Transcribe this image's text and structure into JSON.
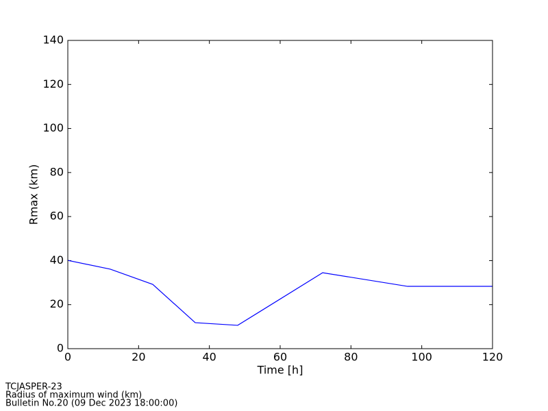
{
  "chart_data": {
    "type": "line",
    "xlabel": "Time [h]",
    "ylabel": "Rmax (km)",
    "x": [
      0,
      12,
      24,
      36,
      48,
      72,
      96,
      120
    ],
    "series": [
      {
        "name": "Rmax",
        "color": "#0000ff",
        "values": [
          40.1,
          36.1,
          29.2,
          11.8,
          10.6,
          34.5,
          28.3,
          28.3
        ]
      }
    ],
    "xlim": [
      0,
      120
    ],
    "xticks": [
      0,
      20,
      40,
      60,
      80,
      100,
      120
    ],
    "ylim": [
      0,
      140
    ],
    "yticks": [
      0,
      20,
      40,
      60,
      80,
      100,
      120,
      140
    ],
    "grid": false,
    "footer": [
      "TCJASPER-23",
      "Radius of maximum wind (km)",
      "Bulletin No.20 (09 Dec 2023  18:00:00)"
    ]
  }
}
